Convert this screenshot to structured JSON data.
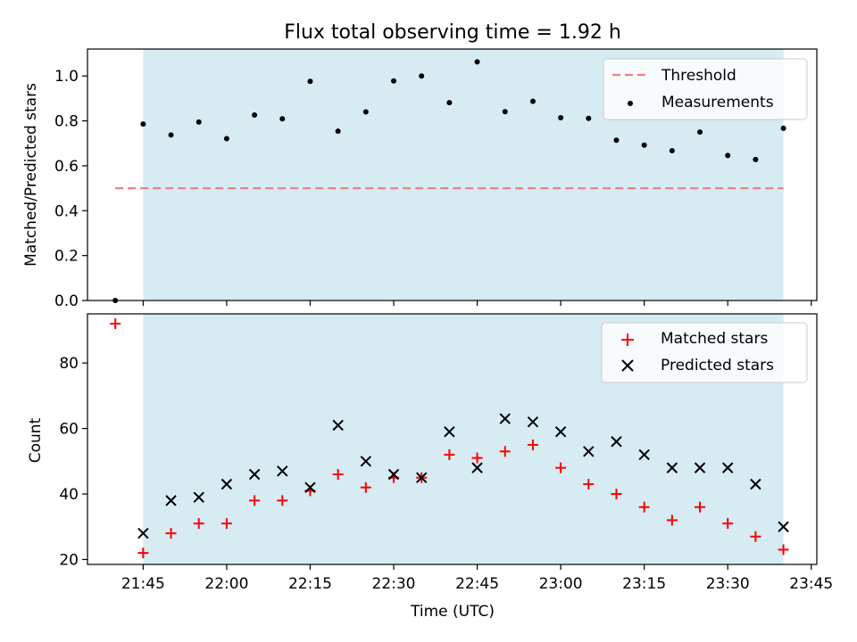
{
  "chart_data": [
    {
      "type": "scatter",
      "title": "Flux total observing time = 1.92 h",
      "xlabel": "",
      "ylabel": "Matched/Predicted stars",
      "ylim": [
        0,
        1.12
      ],
      "yticks": [
        0.0,
        0.2,
        0.4,
        0.6,
        0.8,
        1.0
      ],
      "ytick_labels": [
        "0.0",
        "0.2",
        "0.4",
        "0.6",
        "0.8",
        "1.0"
      ],
      "shaded_region": {
        "start": "21:45",
        "end": "23:40",
        "color": "#add8e6"
      },
      "legend_position": "upper right",
      "threshold": {
        "name": "Threshold",
        "value": 0.5,
        "start": "21:40",
        "end": "23:40",
        "color": "#f08080"
      },
      "series": [
        {
          "name": "Measurements",
          "color": "#000000",
          "x": [
            "21:40",
            "21:45",
            "21:50",
            "21:55",
            "22:00",
            "22:05",
            "22:10",
            "22:15",
            "22:20",
            "22:25",
            "22:30",
            "22:35",
            "22:40",
            "22:45",
            "22:50",
            "22:55",
            "23:00",
            "23:05",
            "23:10",
            "23:15",
            "23:20",
            "23:25",
            "23:30",
            "23:35",
            "23:40"
          ],
          "values": [
            0.0,
            0.786,
            0.737,
            0.795,
            0.721,
            0.826,
            0.809,
            0.976,
            0.754,
            0.84,
            0.978,
            1.0,
            0.881,
            1.063,
            0.841,
            0.887,
            0.814,
            0.811,
            0.714,
            0.692,
            0.667,
            0.75,
            0.646,
            0.628,
            0.767
          ]
        }
      ]
    },
    {
      "type": "scatter",
      "xlabel": "Time (UTC)",
      "ylabel": "Count",
      "ylim": [
        18.5,
        95
      ],
      "yticks": [
        20,
        40,
        60,
        80
      ],
      "ytick_labels": [
        "20",
        "40",
        "60",
        "80"
      ],
      "xlim": [
        "21:35",
        "23:46"
      ],
      "xticks": [
        "21:45",
        "22:00",
        "22:15",
        "22:30",
        "22:45",
        "23:00",
        "23:15",
        "23:30",
        "23:45"
      ],
      "shaded_region": {
        "start": "21:45",
        "end": "23:40",
        "color": "#add8e6"
      },
      "legend_position": "upper right",
      "series": [
        {
          "name": "Matched stars",
          "color": "#ff0000",
          "marker": "+",
          "x": [
            "21:40",
            "21:45",
            "21:50",
            "21:55",
            "22:00",
            "22:05",
            "22:10",
            "22:15",
            "22:20",
            "22:25",
            "22:30",
            "22:35",
            "22:40",
            "22:45",
            "22:50",
            "22:55",
            "23:00",
            "23:05",
            "23:10",
            "23:15",
            "23:20",
            "23:25",
            "23:30",
            "23:35",
            "23:40"
          ],
          "values": [
            92,
            22,
            28,
            31,
            31,
            38,
            38,
            41,
            46,
            42,
            45,
            45,
            52,
            51,
            53,
            55,
            48,
            43,
            40,
            36,
            32,
            36,
            31,
            27,
            23
          ]
        },
        {
          "name": "Predicted stars",
          "color": "#000000",
          "marker": "x",
          "x": [
            "21:45",
            "21:50",
            "21:55",
            "22:00",
            "22:05",
            "22:10",
            "22:15",
            "22:20",
            "22:25",
            "22:30",
            "22:35",
            "22:40",
            "22:45",
            "22:50",
            "22:55",
            "23:00",
            "23:05",
            "23:10",
            "23:15",
            "23:20",
            "23:25",
            "23:30",
            "23:35",
            "23:40"
          ],
          "values": [
            28,
            38,
            39,
            43,
            46,
            47,
            42,
            61,
            50,
            46,
            45,
            59,
            48,
            63,
            62,
            59,
            53,
            56,
            52,
            48,
            48,
            48,
            43,
            30
          ]
        }
      ]
    }
  ]
}
